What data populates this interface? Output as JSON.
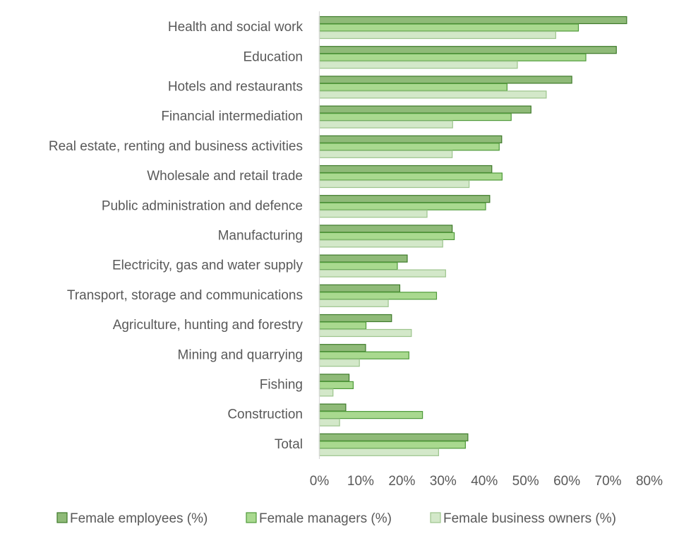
{
  "chart_data": {
    "type": "bar",
    "orientation": "horizontal",
    "title": "",
    "xlabel": "",
    "ylabel": "",
    "xlim": [
      0,
      80
    ],
    "x_ticks": [
      "0%",
      "10%",
      "20%",
      "30%",
      "40%",
      "50%",
      "60%",
      "70%",
      "80%"
    ],
    "grid": false,
    "legend_position": "bottom",
    "categories": [
      "Health and social work",
      "Education",
      "Hotels and restaurants",
      "Financial intermediation",
      "Real estate, renting and business activities",
      "Wholesale and retail trade",
      "Public administration and defence",
      "Manufacturing",
      "Electricity, gas and water supply",
      "Transport, storage and communications",
      "Agriculture, hunting and forestry",
      "Mining and quarrying",
      "Fishing",
      "Construction",
      "Total"
    ],
    "series": [
      {
        "name": "Female employees (%)",
        "color": "#8fba78",
        "stroke": "#3e7a2a",
        "values": [
          74.5,
          72,
          61.2,
          51.3,
          44.2,
          41.8,
          41.3,
          32.2,
          21.3,
          19.5,
          17.5,
          11.2,
          7.2,
          6.4,
          36
        ]
      },
      {
        "name": "Female managers (%)",
        "color": "#a9d98f",
        "stroke": "#4f9a3a",
        "values": [
          62.8,
          64.6,
          45.5,
          46.5,
          43.6,
          44.3,
          40.3,
          32.7,
          18.9,
          28.4,
          11.3,
          21.7,
          8.2,
          25,
          35.4
        ]
      },
      {
        "name": "Female business owners (%)",
        "color": "#d3e8c9",
        "stroke": "#9cc48c",
        "values": [
          57.3,
          48,
          55,
          32.3,
          32.2,
          36.3,
          26.1,
          29.9,
          30.6,
          16.7,
          22.3,
          9.7,
          3.3,
          4.9,
          28.9
        ]
      }
    ]
  }
}
